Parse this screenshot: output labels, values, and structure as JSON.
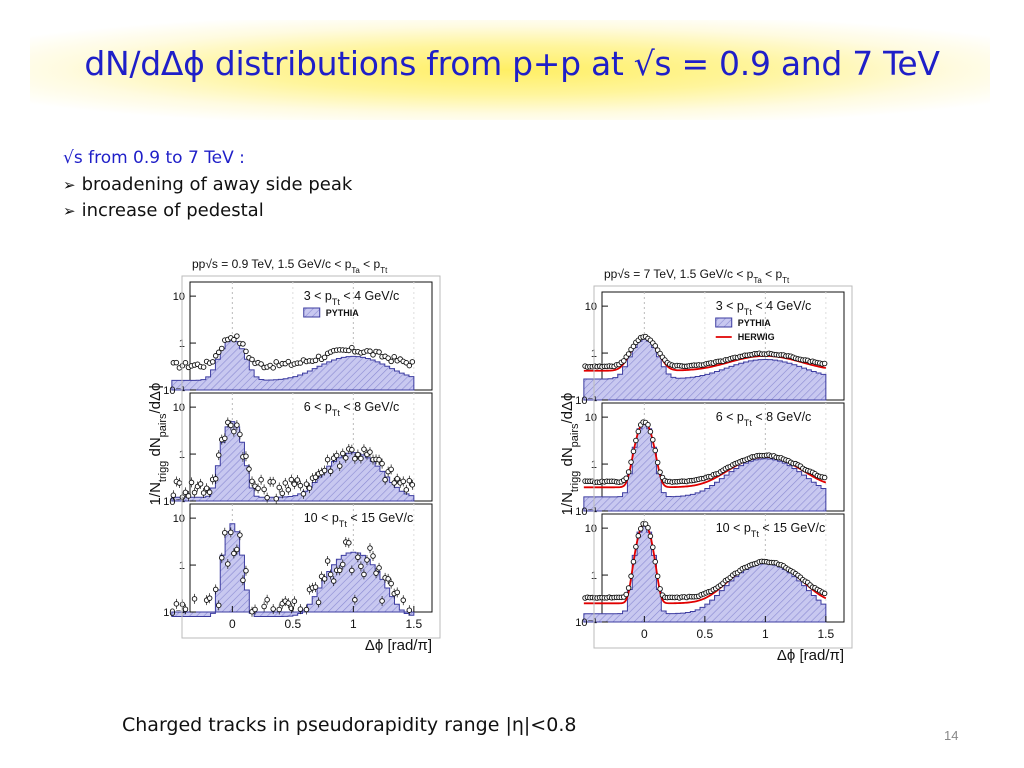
{
  "slide": {
    "title": "dN/dΔϕ distributions from p+p at √s = 0.9 and 7 TeV",
    "intro": "√s from 0.9 to 7 TeV :",
    "bullets": [
      "broadening of away side peak",
      "increase of pedestal"
    ],
    "footer": "Charged tracks in pseudorapidity range |η|<0.8",
    "page_number": "14"
  },
  "colors": {
    "title": "#1f1fc8",
    "pythia_fill": "#c8c8f0",
    "pythia_line": "#3c3ca0",
    "herwig": "#e00000",
    "data": "#111111"
  },
  "chart_data": [
    {
      "type": "line",
      "title": "pp√s = 0.9 TeV, 1.5 GeV/c < p_Ta < p_Tt",
      "xlabel": "Δϕ [rad/π]",
      "ylabel": "1/N_trigg dN_pairs/dΔϕ",
      "xlim": [
        -0.35,
        1.65
      ],
      "xticks": [
        "0",
        "0.5",
        "1",
        "1.5"
      ],
      "ylim": [
        0.1,
        20
      ],
      "yscale": "log",
      "yticks": [
        "10",
        "1",
        "10⁻¹"
      ],
      "legend": [
        "PYTHIA"
      ],
      "panels": [
        {
          "label": "3 < p_Tt < 4 GeV/c",
          "near_peak": 1.05,
          "near_width": 0.075,
          "away_peak": 0.36,
          "away_width": 0.22,
          "pedestal": 0.16,
          "data_pedestal": 0.34,
          "herwig_pedestal": null,
          "noise": 0.15
        },
        {
          "label": "6 < p_Tt < 8 GeV/c",
          "near_peak": 4.8,
          "near_width": 0.055,
          "away_peak": 0.95,
          "away_width": 0.16,
          "pedestal": 0.12,
          "data_pedestal": 0.2,
          "herwig_pedestal": null,
          "noise": 0.45
        },
        {
          "label": "10 < p_Tt < 15 GeV/c",
          "near_peak": 7.5,
          "near_width": 0.045,
          "away_peak": 1.8,
          "away_width": 0.14,
          "pedestal": 0.08,
          "data_pedestal": 0.1,
          "herwig_pedestal": null,
          "noise": 1.0
        }
      ]
    },
    {
      "type": "line",
      "title": "pp√s = 7 TeV, 1.5 GeV/c < p_Ta < p_Tt",
      "xlabel": "Δϕ [rad/π]",
      "ylabel": "1/N_trigg dN_pairs/dΔϕ",
      "xlim": [
        -0.35,
        1.65
      ],
      "xticks": [
        "0",
        "0.5",
        "1",
        "1.5"
      ],
      "ylim": [
        0.1,
        20
      ],
      "yscale": "log",
      "yticks": [
        "10",
        "1",
        "10⁻¹"
      ],
      "legend": [
        "PYTHIA",
        "HERWIG"
      ],
      "panels": [
        {
          "label": "3 < p_Tt < 4 GeV/c",
          "near_peak": 1.7,
          "near_width": 0.08,
          "away_peak": 0.45,
          "away_width": 0.25,
          "pedestal": 0.28,
          "data_pedestal": 0.52,
          "herwig_pedestal": 0.42,
          "noise": 0.03
        },
        {
          "label": "6 < p_Tt < 8 GeV/c",
          "near_peak": 7.5,
          "near_width": 0.05,
          "away_peak": 1.1,
          "away_width": 0.22,
          "pedestal": 0.2,
          "data_pedestal": 0.42,
          "herwig_pedestal": 0.32,
          "noise": 0.03
        },
        {
          "label": "10 < p_Tt < 15 GeV/c",
          "near_peak": 12,
          "near_width": 0.045,
          "away_peak": 1.6,
          "away_width": 0.2,
          "pedestal": 0.15,
          "data_pedestal": 0.33,
          "herwig_pedestal": 0.25,
          "noise": 0.03
        }
      ]
    }
  ]
}
